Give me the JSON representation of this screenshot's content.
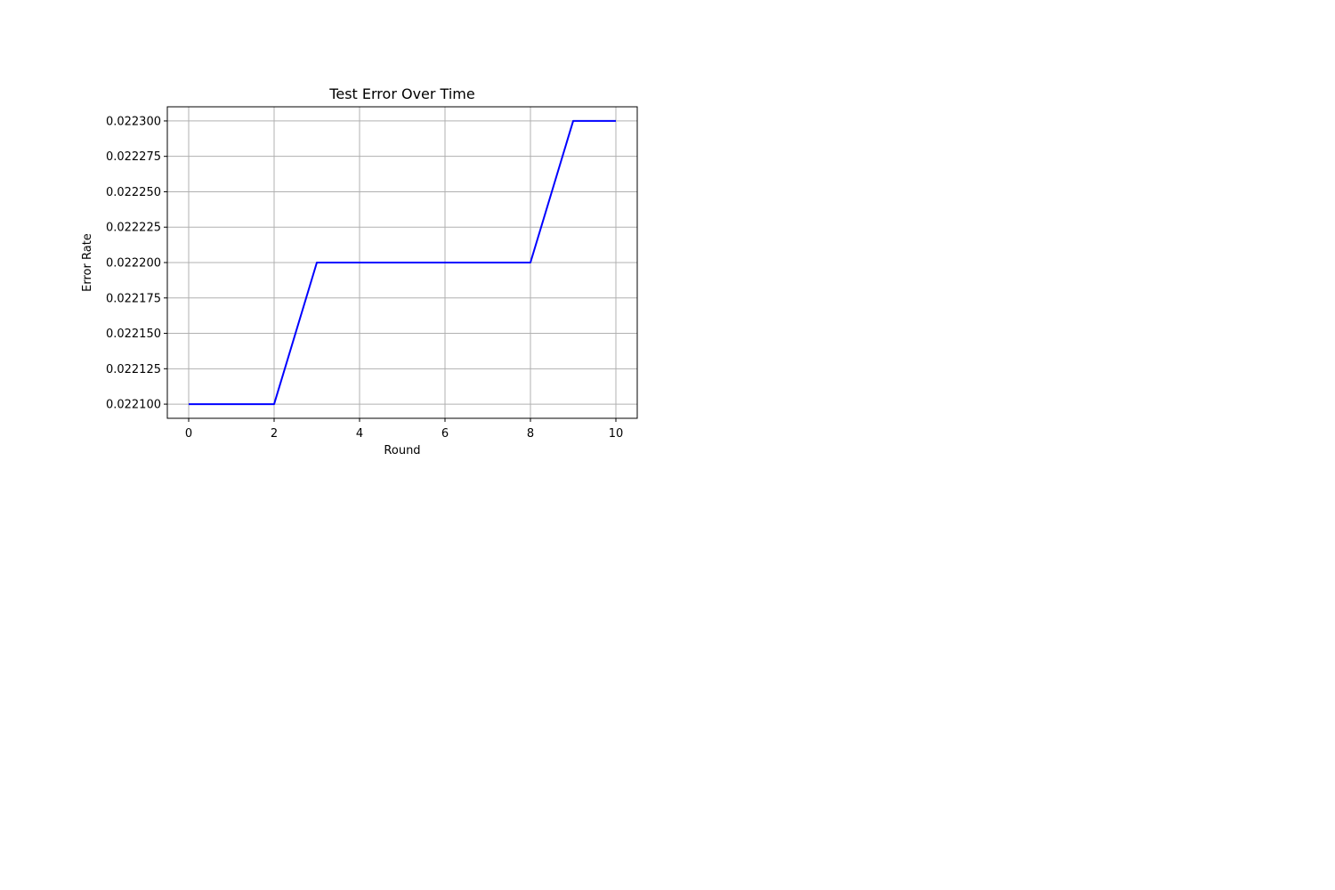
{
  "chart_data": {
    "type": "line",
    "title": "Test Error Over Time",
    "xlabel": "Round",
    "ylabel": "Error Rate",
    "xlim": [
      -0.5,
      10.5
    ],
    "ylim": [
      0.02209,
      0.02231
    ],
    "xticks": [
      0,
      2,
      4,
      6,
      8,
      10
    ],
    "xtick_labels": [
      "0",
      "2",
      "4",
      "6",
      "8",
      "10"
    ],
    "yticks": [
      0.0221,
      0.022125,
      0.02215,
      0.022175,
      0.0222,
      0.022225,
      0.02225,
      0.022275,
      0.0223
    ],
    "ytick_labels": [
      "0.022100",
      "0.022125",
      "0.022150",
      "0.022175",
      "0.022200",
      "0.022225",
      "0.022250",
      "0.022275",
      "0.022300"
    ],
    "grid": true,
    "series": [
      {
        "color": "#0000ff",
        "x": [
          0,
          1,
          2,
          3,
          4,
          5,
          6,
          7,
          8,
          9,
          10
        ],
        "y": [
          0.0221,
          0.0221,
          0.0221,
          0.0222,
          0.0222,
          0.0222,
          0.0222,
          0.0222,
          0.0222,
          0.0223,
          0.0223
        ]
      }
    ]
  }
}
